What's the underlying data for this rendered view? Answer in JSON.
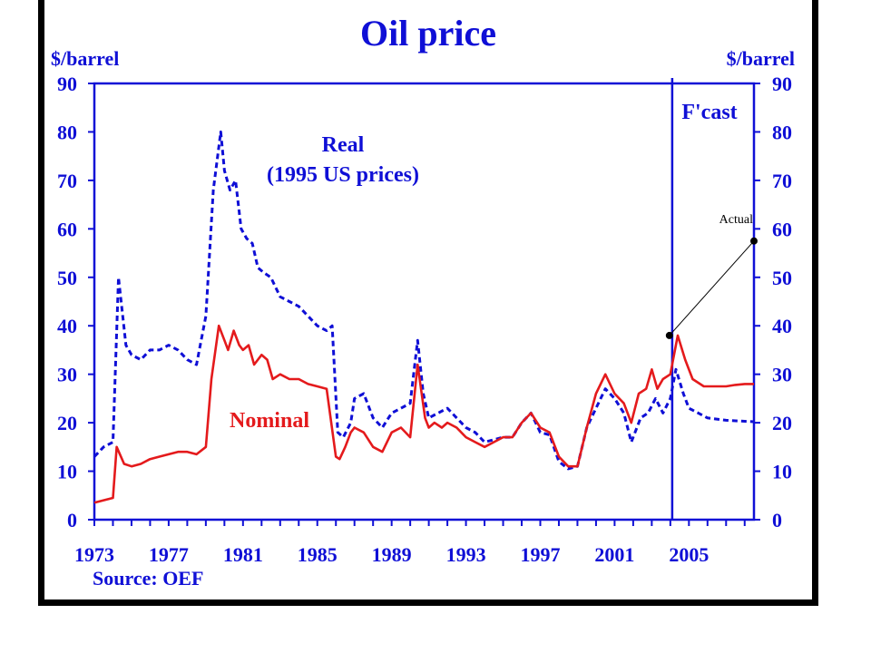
{
  "chart_data": {
    "type": "line",
    "title": "Oil price",
    "ylabel_left": "$/barrel",
    "ylabel_right": "$/barrel",
    "ylim": [
      0,
      90
    ],
    "yticks": [
      0,
      10,
      20,
      30,
      40,
      50,
      60,
      70,
      80,
      90
    ],
    "xlim": [
      1973,
      2008.5
    ],
    "xticks": [
      1973,
      1977,
      1981,
      1985,
      1989,
      1993,
      1997,
      2001,
      2005
    ],
    "forecast_label": "F'cast",
    "forecast_start": 2004.1,
    "source": "Source: OEF",
    "annotation": {
      "text": "Actual",
      "from": [
        2003.95,
        38
      ],
      "to": [
        2008.5,
        57.5
      ]
    },
    "colors": {
      "nominal": "#e41a1c",
      "real": "#0f0fd6",
      "axis": "#0f0fd6"
    },
    "series": [
      {
        "name": "Nominal",
        "style": "solid",
        "x": [
          1973.0,
          1973.5,
          1974.0,
          1974.2,
          1974.6,
          1975.0,
          1975.5,
          1976.0,
          1976.5,
          1977.0,
          1977.5,
          1978.0,
          1978.5,
          1979.0,
          1979.3,
          1979.7,
          1980.0,
          1980.2,
          1980.5,
          1980.8,
          1981.0,
          1981.3,
          1981.6,
          1982.0,
          1982.3,
          1982.6,
          1983.0,
          1983.5,
          1984.0,
          1984.5,
          1985.0,
          1985.5,
          1986.0,
          1986.2,
          1986.5,
          1986.8,
          1987.0,
          1987.5,
          1988.0,
          1988.5,
          1989.0,
          1989.5,
          1990.0,
          1990.4,
          1990.8,
          1991.0,
          1991.3,
          1991.7,
          1992.0,
          1992.5,
          1993.0,
          1993.5,
          1994.0,
          1994.5,
          1995.0,
          1995.5,
          1996.0,
          1996.5,
          1997.0,
          1997.5,
          1998.0,
          1998.5,
          1999.0,
          1999.5,
          2000.0,
          2000.5,
          2001.0,
          2001.5,
          2001.9,
          2002.3,
          2002.7,
          2003.0,
          2003.3,
          2003.6,
          2004.0,
          2004.4,
          2004.8,
          2005.2,
          2005.8,
          2006.5,
          2007.0,
          2007.5,
          2008.0,
          2008.5
        ],
        "values": [
          3.5,
          4.0,
          4.5,
          15.0,
          11.5,
          11.0,
          11.5,
          12.5,
          13.0,
          13.5,
          14.0,
          14.0,
          13.5,
          15.0,
          29.0,
          40.0,
          37.0,
          35.0,
          39.0,
          36.0,
          35.0,
          36.0,
          32.0,
          34.0,
          33.0,
          29.0,
          30.0,
          29.0,
          29.0,
          28.0,
          27.5,
          27.0,
          13.0,
          12.5,
          15.0,
          18.0,
          19.0,
          18.0,
          15.0,
          14.0,
          18.0,
          19.0,
          17.0,
          32.0,
          21.0,
          19.0,
          20.0,
          19.0,
          20.0,
          19.0,
          17.0,
          16.0,
          15.0,
          16.0,
          17.0,
          17.0,
          20.0,
          22.0,
          19.0,
          18.0,
          13.0,
          11.0,
          11.0,
          19.0,
          26.0,
          30.0,
          26.0,
          24.0,
          20.0,
          26.0,
          27.0,
          31.0,
          27.0,
          29.0,
          30.0,
          38.0,
          33.0,
          29.0,
          27.5,
          27.5,
          27.5,
          27.8,
          28.0,
          28.0
        ]
      },
      {
        "name": "Real",
        "sublabel": "(1995 US prices)",
        "style": "dashed",
        "x": [
          1973.0,
          1973.5,
          1974.0,
          1974.3,
          1974.7,
          1975.0,
          1975.5,
          1976.0,
          1976.5,
          1977.0,
          1977.5,
          1978.0,
          1978.5,
          1979.0,
          1979.4,
          1979.8,
          1980.0,
          1980.3,
          1980.6,
          1980.9,
          1981.2,
          1981.5,
          1981.8,
          1982.1,
          1982.5,
          1983.0,
          1983.5,
          1984.0,
          1984.5,
          1985.0,
          1985.5,
          1985.8,
          1986.1,
          1986.4,
          1986.8,
          1987.0,
          1987.5,
          1988.0,
          1988.5,
          1989.0,
          1989.5,
          1990.0,
          1990.4,
          1990.7,
          1991.0,
          1991.5,
          1992.0,
          1992.5,
          1993.0,
          1993.5,
          1994.0,
          1994.5,
          1995.0,
          1995.5,
          1996.0,
          1996.5,
          1997.0,
          1997.5,
          1998.0,
          1998.5,
          1999.0,
          1999.5,
          2000.0,
          2000.5,
          2001.0,
          2001.5,
          2001.9,
          2002.4,
          2002.8,
          2003.2,
          2003.6,
          2004.0,
          2004.3,
          2004.7,
          2005.0,
          2005.5,
          2006.0,
          2007.0,
          2008.0,
          2008.5
        ],
        "values": [
          13.0,
          15.0,
          16.0,
          50.0,
          36.0,
          34.0,
          33.0,
          35.0,
          35.0,
          36.0,
          35.0,
          33.0,
          32.0,
          42.0,
          68.0,
          80.0,
          72.0,
          68.0,
          70.0,
          60.0,
          58.0,
          57.0,
          52.0,
          51.0,
          50.0,
          46.0,
          45.0,
          44.0,
          42.0,
          40.0,
          39.0,
          40.0,
          18.0,
          17.0,
          20.0,
          25.0,
          26.0,
          21.0,
          19.0,
          22.0,
          23.0,
          24.0,
          37.0,
          26.0,
          21.0,
          22.0,
          23.0,
          21.0,
          19.0,
          18.0,
          16.0,
          16.5,
          17.0,
          17.0,
          20.0,
          22.0,
          18.0,
          17.5,
          12.0,
          10.5,
          11.0,
          19.0,
          23.0,
          27.0,
          25.0,
          22.0,
          16.0,
          21.0,
          22.0,
          25.0,
          22.0,
          25.0,
          31.0,
          26.0,
          23.0,
          22.0,
          21.0,
          20.5,
          20.3,
          20.2
        ]
      }
    ]
  }
}
